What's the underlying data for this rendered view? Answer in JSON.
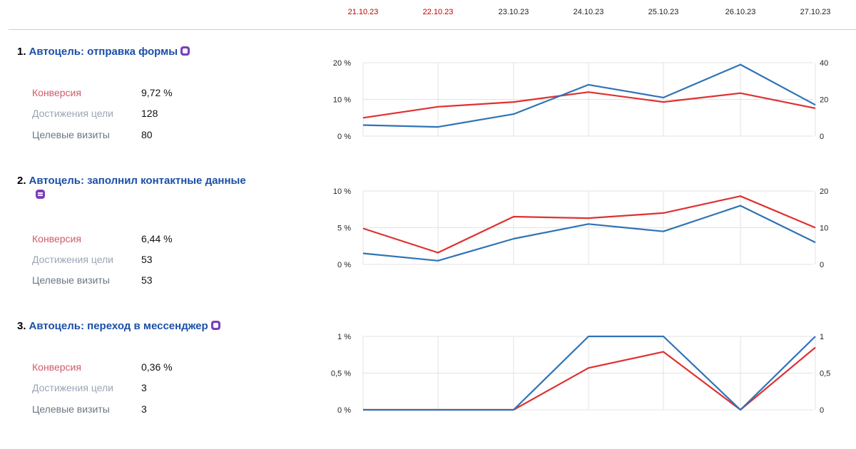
{
  "dates": [
    {
      "label": "21.10.23",
      "weekend": true
    },
    {
      "label": "22.10.23",
      "weekend": true
    },
    {
      "label": "23.10.23",
      "weekend": false
    },
    {
      "label": "24.10.23",
      "weekend": false
    },
    {
      "label": "25.10.23",
      "weekend": false
    },
    {
      "label": "26.10.23",
      "weekend": false
    },
    {
      "label": "27.10.23",
      "weekend": false
    }
  ],
  "colors": {
    "conversion": "#e03030",
    "achievements": "#2f73b5",
    "grid": "#e3e3e3",
    "weekend_date": "#c00000"
  },
  "goals": [
    {
      "number": "1.",
      "name": "Автоцель: отправка формы",
      "icon": "document-icon",
      "metrics": [
        {
          "label": "Конверсия",
          "value": "9,72 %"
        },
        {
          "label": "Достижения цели",
          "value": "128"
        },
        {
          "label": "Целевые визиты",
          "value": "80"
        }
      ]
    },
    {
      "number": "2.",
      "name": "Автоцель: заполнил контактные данные",
      "icon": "form-icon",
      "metrics": [
        {
          "label": "Конверсия",
          "value": "6,44 %"
        },
        {
          "label": "Достижения цели",
          "value": "53"
        },
        {
          "label": "Целевые визиты",
          "value": "53"
        }
      ]
    },
    {
      "number": "3.",
      "name": "Автоцель: переход в мессенджер",
      "icon": "chat-icon",
      "metrics": [
        {
          "label": "Конверсия",
          "value": "0,36 %"
        },
        {
          "label": "Достижения цели",
          "value": "3"
        },
        {
          "label": "Целевые визиты",
          "value": "3"
        }
      ]
    }
  ],
  "chart_data": [
    {
      "type": "line",
      "x": [
        "21.10.23",
        "22.10.23",
        "23.10.23",
        "24.10.23",
        "25.10.23",
        "26.10.23",
        "27.10.23"
      ],
      "left_axis": {
        "ticks": [
          "20 %",
          "10 %",
          "0 %"
        ],
        "ylim": [
          0,
          20
        ]
      },
      "right_axis": {
        "ticks": [
          "40",
          "20",
          "0"
        ],
        "ylim": [
          0,
          40
        ]
      },
      "series": [
        {
          "axis": "left",
          "color": "#e03030",
          "values": [
            5,
            8,
            9.3,
            12,
            9.3,
            11.7,
            7.6
          ]
        },
        {
          "axis": "right",
          "color": "#2f73b5",
          "values": [
            6,
            5,
            12,
            28,
            21,
            39,
            17
          ]
        }
      ],
      "grid": true
    },
    {
      "type": "line",
      "x": [
        "21.10.23",
        "22.10.23",
        "23.10.23",
        "24.10.23",
        "25.10.23",
        "26.10.23",
        "27.10.23"
      ],
      "left_axis": {
        "ticks": [
          "10 %",
          "5 %",
          "0 %"
        ],
        "ylim": [
          0,
          10
        ]
      },
      "right_axis": {
        "ticks": [
          "20",
          "10",
          "0"
        ],
        "ylim": [
          0,
          20
        ]
      },
      "series": [
        {
          "axis": "left",
          "color": "#e03030",
          "values": [
            4.9,
            1.6,
            6.5,
            6.3,
            7,
            9.3,
            5
          ]
        },
        {
          "axis": "right",
          "color": "#2f73b5",
          "values": [
            3,
            1,
            7,
            11,
            9,
            16,
            6
          ]
        }
      ],
      "grid": true
    },
    {
      "type": "line",
      "x": [
        "21.10.23",
        "22.10.23",
        "23.10.23",
        "24.10.23",
        "25.10.23",
        "26.10.23",
        "27.10.23"
      ],
      "left_axis": {
        "ticks": [
          "1 %",
          "0,5 %",
          "0 %"
        ],
        "ylim": [
          0,
          1
        ]
      },
      "right_axis": {
        "ticks": [
          "1",
          "0,5",
          "0"
        ],
        "ylim": [
          0,
          1
        ]
      },
      "series": [
        {
          "axis": "left",
          "color": "#e03030",
          "values": [
            0,
            0,
            0,
            0.57,
            0.79,
            0,
            0.85
          ]
        },
        {
          "axis": "right",
          "color": "#2f73b5",
          "values": [
            0,
            0,
            0,
            1,
            1,
            0,
            1
          ]
        }
      ],
      "grid": true
    }
  ]
}
